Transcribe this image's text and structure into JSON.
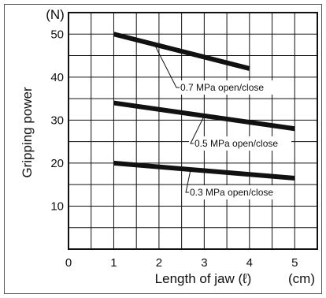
{
  "chart_data": {
    "type": "line",
    "ylabel": "Gripping power",
    "yunit": "(N)",
    "xlabel": "Length of jaw (ℓ)",
    "xunit": "(cm)",
    "xlim": [
      0,
      5.5
    ],
    "ylim": [
      0,
      55
    ],
    "x_ticks": [
      "0",
      "1",
      "2",
      "3",
      "4",
      "5"
    ],
    "y_ticks": [
      "10",
      "20",
      "30",
      "40",
      "50"
    ],
    "grid": true,
    "series": [
      {
        "name": "0.7 MPa open/close",
        "x": [
          1,
          4
        ],
        "y": [
          50,
          42
        ]
      },
      {
        "name": "0.5 MPa open/close",
        "x": [
          1,
          5
        ],
        "y": [
          34,
          28
        ]
      },
      {
        "name": "0.3 MPa open/close",
        "x": [
          1,
          5
        ],
        "y": [
          20,
          16.5
        ]
      }
    ]
  }
}
